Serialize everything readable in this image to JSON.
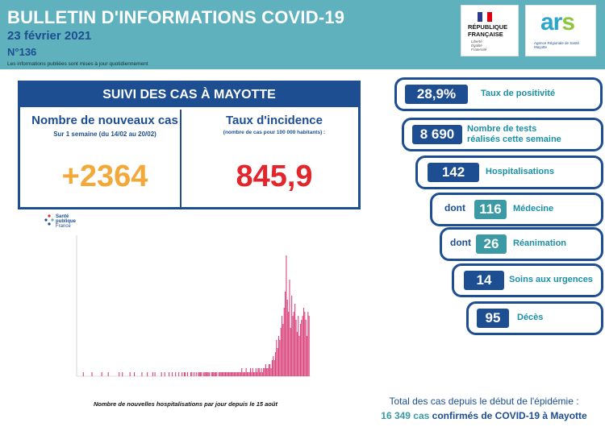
{
  "header": {
    "title": "BULLETIN D'INFORMATIONS COVID-19",
    "date": "23 février 2021",
    "number": "N°136",
    "note": "Les informations publiées sont mises à jour quotidiennement"
  },
  "logos": {
    "rf_line1": "RÉPUBLIQUE",
    "rf_line2": "FRANÇAISE",
    "rf_motto1": "Liberté",
    "rf_motto2": "Égalité",
    "rf_motto3": "Fraternité",
    "ars_word_a": "ar",
    "ars_word_s": "s",
    "ars_sub1": "Agence Régionale de Santé",
    "ars_sub2": "Mayotte",
    "spf_line1": "Santé",
    "spf_line2": "publique",
    "spf_line3": "France"
  },
  "suivi": {
    "banner": "SUIVI DES CAS À MAYOTTE",
    "new_cases_title": "Nombre de nouveaux cas",
    "new_cases_sub": "Sur 1 semaine (du 14/02 au 20/02)",
    "new_cases_value": "+2364",
    "incidence_title": "Taux d'incidence",
    "incidence_sub": "(nombre de cas pour 100 000 habitants) :",
    "incidence_value": "845,9"
  },
  "stats": {
    "positivity_value": "28,9%",
    "positivity_label": "Taux de positivité",
    "tests_value": "8 690",
    "tests_label_line1": "Nombre de tests",
    "tests_label_line2": "réalisés cette semaine",
    "hosp_value": "142",
    "hosp_label": "Hospitalisations",
    "med_prefix": "dont",
    "med_value": "116",
    "med_label": "Médecine",
    "rea_prefix": "dont",
    "rea_value": "26",
    "rea_label": "Réanimation",
    "urg_value": "14",
    "urg_label": "Soins aux urgences",
    "deces_value": "95",
    "deces_label": "Décès"
  },
  "total": {
    "line1": "Total des cas depuis le début de l'épidémie :",
    "number": "16 349 cas",
    "rest": " confirmés de COVID-19 à Mayotte"
  },
  "chart_caption": "Nombre de nouvelles hospitalisations par jour depuis le 15 août",
  "colors": {
    "navy": "#1d4e91",
    "teal": "#5fb1bd",
    "orange": "#f3a939",
    "red": "#e3262b",
    "bar": "#d9417a"
  },
  "chart_data": {
    "type": "bar",
    "title": "Nombre de nouvelles hospitalisations par jour depuis le 15 août",
    "values": [
      0,
      0,
      0,
      0,
      0,
      1,
      0,
      0,
      0,
      0,
      0,
      0,
      0,
      1,
      0,
      0,
      0,
      0,
      0,
      0,
      0,
      0,
      1,
      0,
      0,
      0,
      0,
      0,
      1,
      0,
      0,
      0,
      0,
      0,
      0,
      0,
      0,
      0,
      1,
      0,
      0,
      1,
      0,
      0,
      0,
      0,
      0,
      0,
      1,
      0,
      0,
      0,
      1,
      0,
      0,
      0,
      0,
      0,
      0,
      1,
      0,
      0,
      0,
      0,
      1,
      0,
      0,
      0,
      0,
      1,
      0,
      1,
      0,
      0,
      0,
      0,
      0,
      1,
      0,
      0,
      1,
      0,
      0,
      0,
      1,
      0,
      0,
      1,
      0,
      0,
      1,
      0,
      0,
      1,
      0,
      0,
      1,
      0,
      1,
      1,
      0,
      1,
      0,
      0,
      1,
      1,
      0,
      1,
      0,
      1,
      0,
      1,
      1,
      1,
      1,
      0,
      1,
      1,
      1,
      1,
      1,
      1,
      0,
      1,
      1,
      1,
      1,
      1,
      1,
      0,
      1,
      1,
      1,
      1,
      1,
      1,
      1,
      1,
      1,
      1,
      1,
      1,
      1,
      1,
      1,
      1,
      1,
      1,
      1,
      1,
      1,
      2,
      1,
      1,
      1,
      2,
      1,
      1,
      1,
      2,
      1,
      2,
      1,
      1,
      2,
      1,
      2,
      2,
      1,
      2,
      1,
      2,
      2,
      3,
      2,
      2,
      3,
      3,
      2,
      4,
      5,
      4,
      6,
      9,
      7,
      10,
      9,
      12,
      15,
      13,
      17,
      21,
      30,
      19,
      16,
      24,
      12,
      20,
      15,
      16,
      18,
      14,
      11,
      15,
      10,
      13,
      14,
      15,
      17,
      16,
      14,
      10,
      16,
      15
    ],
    "ylim": [
      0,
      35
    ]
  }
}
